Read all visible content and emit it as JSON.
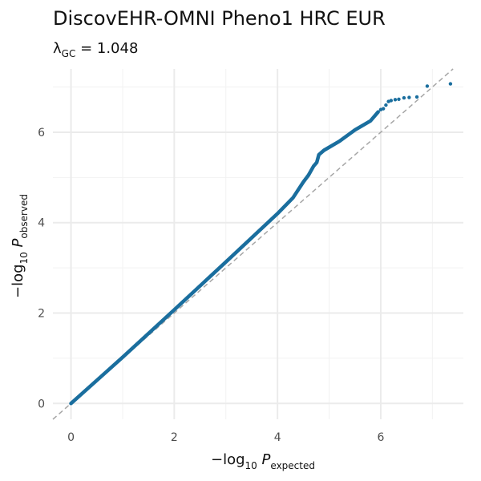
{
  "chart_data": {
    "type": "scatter",
    "title": "DiscovEHR-OMNI Pheno1 HRC EUR",
    "subtitle": {
      "symbol": "λ",
      "subscript": "GC",
      "relation": " = ",
      "value": "1.048"
    },
    "xlabel": {
      "prefix": "−log",
      "base": "10",
      "var": "P",
      "subscript": "expected"
    },
    "ylabel": {
      "prefix": "−log",
      "base": "10",
      "var": "P",
      "subscript": "observed"
    },
    "xlim": [
      -0.35,
      7.6
    ],
    "ylim": [
      -0.35,
      7.4
    ],
    "x_ticks": [
      0,
      2,
      4,
      6
    ],
    "x_tick_labels": [
      "0",
      "2",
      "4",
      "6"
    ],
    "y_ticks": [
      0,
      2,
      4,
      6
    ],
    "y_tick_labels": [
      "0",
      "2",
      "4",
      "6"
    ],
    "grid": true,
    "reference_line": {
      "slope": 1,
      "intercept": 0,
      "style": "dashed",
      "color": "#a6a6a6"
    },
    "point_color": "#1a6e9e",
    "curve": [
      [
        0,
        0
      ],
      [
        1,
        1.02
      ],
      [
        2,
        2.07
      ],
      [
        3,
        3.13
      ],
      [
        4,
        4.2
      ],
      [
        4.3,
        4.55
      ],
      [
        4.5,
        4.9
      ],
      [
        4.6,
        5.05
      ],
      [
        4.7,
        5.25
      ],
      [
        4.76,
        5.33
      ],
      [
        4.8,
        5.5
      ],
      [
        4.9,
        5.6
      ],
      [
        5.2,
        5.8
      ],
      [
        5.5,
        6.05
      ],
      [
        5.8,
        6.25
      ],
      [
        5.95,
        6.45
      ]
    ],
    "tail_points": [
      [
        6.0,
        6.5
      ],
      [
        6.05,
        6.52
      ],
      [
        6.1,
        6.6
      ],
      [
        6.15,
        6.68
      ],
      [
        6.2,
        6.7
      ],
      [
        6.28,
        6.72
      ],
      [
        6.35,
        6.73
      ],
      [
        6.45,
        6.76
      ],
      [
        6.55,
        6.77
      ],
      [
        6.7,
        6.78
      ],
      [
        6.9,
        7.02
      ],
      [
        7.35,
        7.07
      ]
    ]
  }
}
